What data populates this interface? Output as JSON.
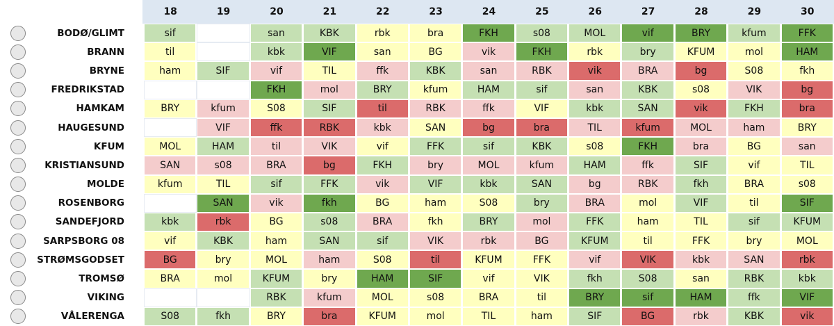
{
  "table": {
    "columns": [
      18,
      19,
      20,
      21,
      22,
      23,
      24,
      25,
      26,
      27,
      28,
      29,
      30
    ],
    "rows": [
      {
        "team": "BODØ/GLIMT",
        "cells": [
          {
            "text": "sif",
            "color": "#c5e0b3"
          },
          null,
          {
            "text": "san",
            "color": "#c5e0b3"
          },
          {
            "text": "KBK",
            "color": "#c5e0b3"
          },
          {
            "text": "rbk",
            "color": "#ffffbf"
          },
          {
            "text": "bra",
            "color": "#ffffbf"
          },
          {
            "text": "FKH",
            "color": "#6fa84f"
          },
          {
            "text": "s08",
            "color": "#c5e0b3"
          },
          {
            "text": "MOL",
            "color": "#c5e0b3"
          },
          {
            "text": "vif",
            "color": "#6fa84f"
          },
          {
            "text": "BRY",
            "color": "#6fa84f"
          },
          {
            "text": "kfum",
            "color": "#c5e0b3"
          },
          {
            "text": "FFK",
            "color": "#6fa84f"
          }
        ]
      },
      {
        "team": "BRANN",
        "cells": [
          {
            "text": "til",
            "color": "#ffffbf"
          },
          null,
          {
            "text": "kbk",
            "color": "#c5e0b3"
          },
          {
            "text": "VIF",
            "color": "#6fa84f"
          },
          {
            "text": "san",
            "color": "#ffffbf"
          },
          {
            "text": "BG",
            "color": "#ffffbf"
          },
          {
            "text": "vik",
            "color": "#f4cccc"
          },
          {
            "text": "FKH",
            "color": "#6fa84f"
          },
          {
            "text": "rbk",
            "color": "#ffffbf"
          },
          {
            "text": "bry",
            "color": "#c5e0b3"
          },
          {
            "text": "KFUM",
            "color": "#ffffbf"
          },
          {
            "text": "mol",
            "color": "#ffffbf"
          },
          {
            "text": "HAM",
            "color": "#6fa84f"
          }
        ]
      },
      {
        "team": "BRYNE",
        "cells": [
          {
            "text": "ham",
            "color": "#ffffbf"
          },
          {
            "text": "SIF",
            "color": "#c5e0b3"
          },
          {
            "text": "vif",
            "color": "#f4cccc"
          },
          {
            "text": "TIL",
            "color": "#ffffbf"
          },
          {
            "text": "ffk",
            "color": "#f4cccc"
          },
          {
            "text": "KBK",
            "color": "#c5e0b3"
          },
          {
            "text": "san",
            "color": "#f4cccc"
          },
          {
            "text": "RBK",
            "color": "#f4cccc"
          },
          {
            "text": "vik",
            "color": "#db6b6b"
          },
          {
            "text": "BRA",
            "color": "#f4cccc"
          },
          {
            "text": "bg",
            "color": "#db6b6b"
          },
          {
            "text": "S08",
            "color": "#ffffbf"
          },
          {
            "text": "fkh",
            "color": "#ffffbf"
          }
        ]
      },
      {
        "team": "FREDRIKSTAD",
        "cells": [
          null,
          null,
          {
            "text": "FKH",
            "color": "#6fa84f"
          },
          {
            "text": "mol",
            "color": "#f4cccc"
          },
          {
            "text": "BRY",
            "color": "#c5e0b3"
          },
          {
            "text": "kfum",
            "color": "#ffffbf"
          },
          {
            "text": "HAM",
            "color": "#c5e0b3"
          },
          {
            "text": "sif",
            "color": "#c5e0b3"
          },
          {
            "text": "san",
            "color": "#f4cccc"
          },
          {
            "text": "KBK",
            "color": "#c5e0b3"
          },
          {
            "text": "s08",
            "color": "#ffffbf"
          },
          {
            "text": "VIK",
            "color": "#f4cccc"
          },
          {
            "text": "bg",
            "color": "#db6b6b"
          }
        ]
      },
      {
        "team": "HAMKAM",
        "cells": [
          {
            "text": "BRY",
            "color": "#ffffbf"
          },
          {
            "text": "kfum",
            "color": "#f4cccc"
          },
          {
            "text": "S08",
            "color": "#ffffbf"
          },
          {
            "text": "SIF",
            "color": "#c5e0b3"
          },
          {
            "text": "til",
            "color": "#db6b6b"
          },
          {
            "text": "RBK",
            "color": "#f4cccc"
          },
          {
            "text": "ffk",
            "color": "#f4cccc"
          },
          {
            "text": "VIF",
            "color": "#ffffbf"
          },
          {
            "text": "kbk",
            "color": "#c5e0b3"
          },
          {
            "text": "SAN",
            "color": "#c5e0b3"
          },
          {
            "text": "vik",
            "color": "#db6b6b"
          },
          {
            "text": "FKH",
            "color": "#c5e0b3"
          },
          {
            "text": "bra",
            "color": "#db6b6b"
          }
        ]
      },
      {
        "team": "HAUGESUND",
        "cells": [
          null,
          {
            "text": "VIF",
            "color": "#f4cccc"
          },
          {
            "text": "ffk",
            "color": "#db6b6b"
          },
          {
            "text": "RBK",
            "color": "#db6b6b"
          },
          {
            "text": "kbk",
            "color": "#f4cccc"
          },
          {
            "text": "SAN",
            "color": "#ffffbf"
          },
          {
            "text": "bg",
            "color": "#db6b6b"
          },
          {
            "text": "bra",
            "color": "#db6b6b"
          },
          {
            "text": "TIL",
            "color": "#f4cccc"
          },
          {
            "text": "kfum",
            "color": "#db6b6b"
          },
          {
            "text": "MOL",
            "color": "#f4cccc"
          },
          {
            "text": "ham",
            "color": "#f4cccc"
          },
          {
            "text": "BRY",
            "color": "#ffffbf"
          }
        ]
      },
      {
        "team": "KFUM",
        "cells": [
          {
            "text": "MOL",
            "color": "#ffffbf"
          },
          {
            "text": "HAM",
            "color": "#c5e0b3"
          },
          {
            "text": "til",
            "color": "#f4cccc"
          },
          {
            "text": "VIK",
            "color": "#f4cccc"
          },
          {
            "text": "vif",
            "color": "#ffffbf"
          },
          {
            "text": "FFK",
            "color": "#c5e0b3"
          },
          {
            "text": "sif",
            "color": "#c5e0b3"
          },
          {
            "text": "KBK",
            "color": "#c5e0b3"
          },
          {
            "text": "s08",
            "color": "#ffffbf"
          },
          {
            "text": "FKH",
            "color": "#6fa84f"
          },
          {
            "text": "bra",
            "color": "#f4cccc"
          },
          {
            "text": "BG",
            "color": "#ffffbf"
          },
          {
            "text": "san",
            "color": "#f4cccc"
          }
        ]
      },
      {
        "team": "KRISTIANSUND",
        "cells": [
          {
            "text": "SAN",
            "color": "#f4cccc"
          },
          {
            "text": "s08",
            "color": "#f4cccc"
          },
          {
            "text": "BRA",
            "color": "#f4cccc"
          },
          {
            "text": "bg",
            "color": "#db6b6b"
          },
          {
            "text": "FKH",
            "color": "#c5e0b3"
          },
          {
            "text": "bry",
            "color": "#f4cccc"
          },
          {
            "text": "MOL",
            "color": "#f4cccc"
          },
          {
            "text": "kfum",
            "color": "#f4cccc"
          },
          {
            "text": "HAM",
            "color": "#c5e0b3"
          },
          {
            "text": "ffk",
            "color": "#f4cccc"
          },
          {
            "text": "SIF",
            "color": "#c5e0b3"
          },
          {
            "text": "vif",
            "color": "#ffffbf"
          },
          {
            "text": "TIL",
            "color": "#ffffbf"
          }
        ]
      },
      {
        "team": "MOLDE",
        "cells": [
          {
            "text": "kfum",
            "color": "#ffffbf"
          },
          {
            "text": "TIL",
            "color": "#ffffbf"
          },
          {
            "text": "sif",
            "color": "#c5e0b3"
          },
          {
            "text": "FFK",
            "color": "#c5e0b3"
          },
          {
            "text": "vik",
            "color": "#f4cccc"
          },
          {
            "text": "VIF",
            "color": "#c5e0b3"
          },
          {
            "text": "kbk",
            "color": "#c5e0b3"
          },
          {
            "text": "SAN",
            "color": "#c5e0b3"
          },
          {
            "text": "bg",
            "color": "#f4cccc"
          },
          {
            "text": "RBK",
            "color": "#f4cccc"
          },
          {
            "text": "fkh",
            "color": "#c5e0b3"
          },
          {
            "text": "BRA",
            "color": "#ffffbf"
          },
          {
            "text": "s08",
            "color": "#ffffbf"
          }
        ]
      },
      {
        "team": "ROSENBORG",
        "cells": [
          null,
          {
            "text": "SAN",
            "color": "#6fa84f"
          },
          {
            "text": "vik",
            "color": "#f4cccc"
          },
          {
            "text": "fkh",
            "color": "#6fa84f"
          },
          {
            "text": "BG",
            "color": "#ffffbf"
          },
          {
            "text": "ham",
            "color": "#ffffbf"
          },
          {
            "text": "S08",
            "color": "#ffffbf"
          },
          {
            "text": "bry",
            "color": "#c5e0b3"
          },
          {
            "text": "BRA",
            "color": "#f4cccc"
          },
          {
            "text": "mol",
            "color": "#ffffbf"
          },
          {
            "text": "VIF",
            "color": "#c5e0b3"
          },
          {
            "text": "til",
            "color": "#ffffbf"
          },
          {
            "text": "SIF",
            "color": "#6fa84f"
          }
        ]
      },
      {
        "team": "SANDEFJORD",
        "cells": [
          {
            "text": "kbk",
            "color": "#c5e0b3"
          },
          {
            "text": "rbk",
            "color": "#db6b6b"
          },
          {
            "text": "BG",
            "color": "#ffffbf"
          },
          {
            "text": "s08",
            "color": "#c5e0b3"
          },
          {
            "text": "BRA",
            "color": "#f4cccc"
          },
          {
            "text": "fkh",
            "color": "#ffffbf"
          },
          {
            "text": "BRY",
            "color": "#c5e0b3"
          },
          {
            "text": "mol",
            "color": "#f4cccc"
          },
          {
            "text": "FFK",
            "color": "#c5e0b3"
          },
          {
            "text": "ham",
            "color": "#ffffbf"
          },
          {
            "text": "TIL",
            "color": "#ffffbf"
          },
          {
            "text": "sif",
            "color": "#c5e0b3"
          },
          {
            "text": "KFUM",
            "color": "#c5e0b3"
          }
        ]
      },
      {
        "team": "SARPSBORG 08",
        "cells": [
          {
            "text": "vif",
            "color": "#ffffbf"
          },
          {
            "text": "KBK",
            "color": "#c5e0b3"
          },
          {
            "text": "ham",
            "color": "#ffffbf"
          },
          {
            "text": "SAN",
            "color": "#c5e0b3"
          },
          {
            "text": "sif",
            "color": "#c5e0b3"
          },
          {
            "text": "VIK",
            "color": "#f4cccc"
          },
          {
            "text": "rbk",
            "color": "#f4cccc"
          },
          {
            "text": "BG",
            "color": "#f4cccc"
          },
          {
            "text": "KFUM",
            "color": "#c5e0b3"
          },
          {
            "text": "til",
            "color": "#ffffbf"
          },
          {
            "text": "FFK",
            "color": "#ffffbf"
          },
          {
            "text": "bry",
            "color": "#ffffbf"
          },
          {
            "text": "MOL",
            "color": "#ffffbf"
          }
        ]
      },
      {
        "team": "STRØMSGODSET",
        "cells": [
          {
            "text": "BG",
            "color": "#db6b6b"
          },
          {
            "text": "bry",
            "color": "#ffffbf"
          },
          {
            "text": "MOL",
            "color": "#ffffbf"
          },
          {
            "text": "ham",
            "color": "#f4cccc"
          },
          {
            "text": "S08",
            "color": "#ffffbf"
          },
          {
            "text": "til",
            "color": "#db6b6b"
          },
          {
            "text": "KFUM",
            "color": "#ffffbf"
          },
          {
            "text": "FFK",
            "color": "#ffffbf"
          },
          {
            "text": "vif",
            "color": "#f4cccc"
          },
          {
            "text": "VIK",
            "color": "#db6b6b"
          },
          {
            "text": "kbk",
            "color": "#f4cccc"
          },
          {
            "text": "SAN",
            "color": "#f4cccc"
          },
          {
            "text": "rbk",
            "color": "#db6b6b"
          }
        ]
      },
      {
        "team": "TROMSØ",
        "cells": [
          {
            "text": "BRA",
            "color": "#ffffbf"
          },
          {
            "text": "mol",
            "color": "#ffffbf"
          },
          {
            "text": "KFUM",
            "color": "#c5e0b3"
          },
          {
            "text": "bry",
            "color": "#ffffbf"
          },
          {
            "text": "HAM",
            "color": "#6fa84f"
          },
          {
            "text": "SIF",
            "color": "#6fa84f"
          },
          {
            "text": "vif",
            "color": "#ffffbf"
          },
          {
            "text": "VIK",
            "color": "#ffffbf"
          },
          {
            "text": "fkh",
            "color": "#c5e0b3"
          },
          {
            "text": "S08",
            "color": "#c5e0b3"
          },
          {
            "text": "san",
            "color": "#ffffbf"
          },
          {
            "text": "RBK",
            "color": "#c5e0b3"
          },
          {
            "text": "kbk",
            "color": "#c5e0b3"
          }
        ]
      },
      {
        "team": "VIKING",
        "cells": [
          null,
          null,
          {
            "text": "RBK",
            "color": "#c5e0b3"
          },
          {
            "text": "kfum",
            "color": "#f4cccc"
          },
          {
            "text": "MOL",
            "color": "#ffffbf"
          },
          {
            "text": "s08",
            "color": "#ffffbf"
          },
          {
            "text": "BRA",
            "color": "#ffffbf"
          },
          {
            "text": "til",
            "color": "#ffffbf"
          },
          {
            "text": "BRY",
            "color": "#6fa84f"
          },
          {
            "text": "sif",
            "color": "#6fa84f"
          },
          {
            "text": "HAM",
            "color": "#6fa84f"
          },
          {
            "text": "ffk",
            "color": "#c5e0b3"
          },
          {
            "text": "VIF",
            "color": "#6fa84f"
          }
        ]
      },
      {
        "team": "VÅLERENGA",
        "cells": [
          {
            "text": "S08",
            "color": "#c5e0b3"
          },
          {
            "text": "fkh",
            "color": "#c5e0b3"
          },
          {
            "text": "BRY",
            "color": "#ffffbf"
          },
          {
            "text": "bra",
            "color": "#db6b6b"
          },
          {
            "text": "KFUM",
            "color": "#ffffbf"
          },
          {
            "text": "mol",
            "color": "#ffffbf"
          },
          {
            "text": "TIL",
            "color": "#ffffbf"
          },
          {
            "text": "ham",
            "color": "#ffffbf"
          },
          {
            "text": "SIF",
            "color": "#c5e0b3"
          },
          {
            "text": "BG",
            "color": "#db6b6b"
          },
          {
            "text": "rbk",
            "color": "#f4cccc"
          },
          {
            "text": "KBK",
            "color": "#c5e0b3"
          },
          {
            "text": "vik",
            "color": "#db6b6b"
          }
        ]
      }
    ]
  }
}
